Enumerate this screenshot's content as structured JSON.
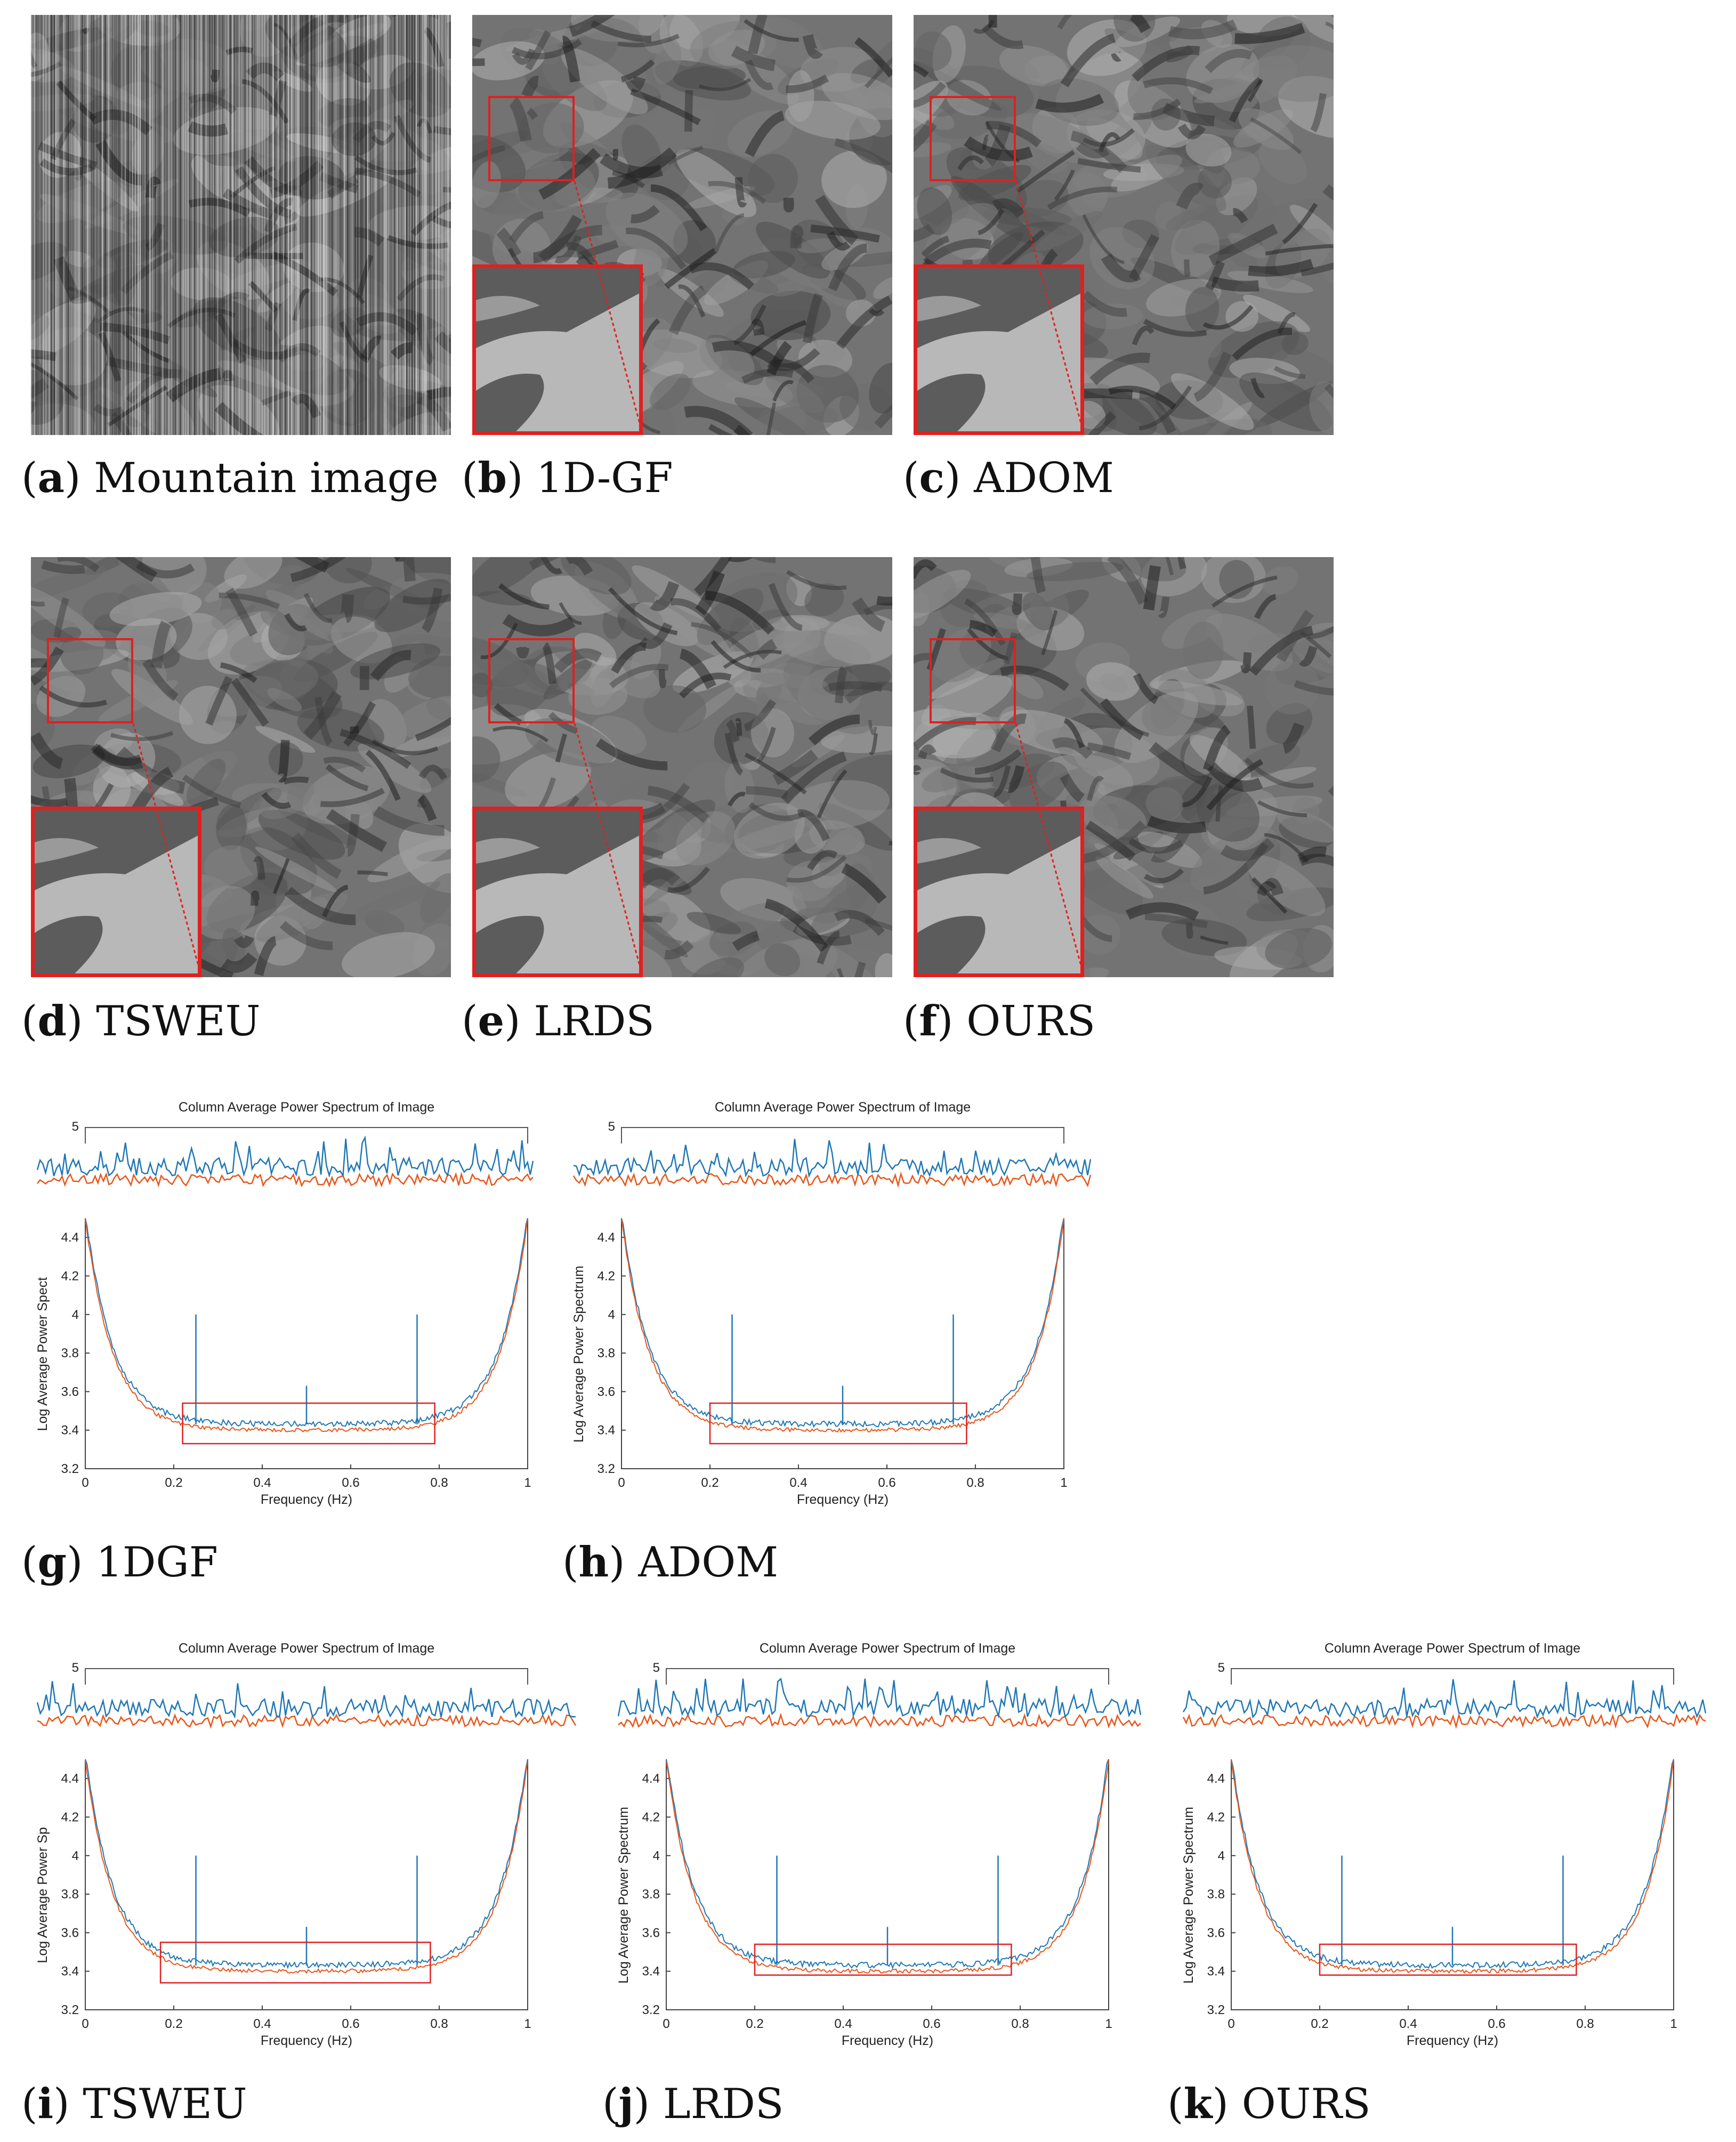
{
  "panels": [
    {
      "id": "a",
      "letter": "a",
      "label": "Mountain image",
      "striped": true,
      "zoom": false
    },
    {
      "id": "b",
      "letter": "b",
      "label": "1D-GF",
      "striped": false,
      "zoom": true
    },
    {
      "id": "c",
      "letter": "c",
      "label": "ADOM",
      "striped": false,
      "zoom": true
    },
    {
      "id": "d",
      "letter": "d",
      "label": "TSWEU",
      "striped": false,
      "zoom": true
    },
    {
      "id": "e",
      "letter": "e",
      "label": "LRDS",
      "striped": false,
      "zoom": true
    },
    {
      "id": "f",
      "letter": "f",
      "label": "OURS",
      "striped": false,
      "zoom": true
    }
  ],
  "chart_captions": [
    {
      "letter": "g",
      "label": "1DGF"
    },
    {
      "letter": "h",
      "label": "ADOM"
    },
    {
      "letter": "i",
      "label": "TSWEU"
    },
    {
      "letter": "j",
      "label": "LRDS"
    },
    {
      "letter": "k",
      "label": "OURS"
    }
  ],
  "chart_data": [
    {
      "id": "g",
      "type": "line",
      "title": "Column Average Power Spectrum of Image",
      "xlabel": "Frequency (Hz)",
      "ylabel": "Log Average Power Spect",
      "xlim": [
        0,
        1
      ],
      "ylim": [
        3.2,
        4.5
      ],
      "xticks": [
        "0",
        "0.2",
        "0.4",
        "0.6",
        "0.8",
        "1"
      ],
      "yticks": [
        "3.2",
        "3.4",
        "3.6",
        "3.8",
        "4",
        "4.2",
        "4.4"
      ],
      "inset_ytick": "5",
      "series": [
        {
          "color": "#1f77b4"
        },
        {
          "color": "#e8561a"
        }
      ],
      "spikes": [
        {
          "x": 0.25,
          "y": 4.0
        },
        {
          "x": 0.5,
          "y": 3.63
        },
        {
          "x": 0.75,
          "y": 4.0
        }
      ],
      "highlight_box": {
        "x0": 0.22,
        "x1": 0.79,
        "y0": 3.33,
        "y1": 3.54
      },
      "box_color": "#e02020"
    },
    {
      "id": "h",
      "type": "line",
      "title": "Column Average Power Spectrum of Image",
      "xlabel": "Frequency (Hz)",
      "ylabel": "Log Average Power Spectrum",
      "xlim": [
        0,
        1
      ],
      "ylim": [
        3.2,
        4.5
      ],
      "xticks": [
        "0",
        "0.2",
        "0.4",
        "0.6",
        "0.8",
        "1"
      ],
      "yticks": [
        "3.2",
        "3.4",
        "3.6",
        "3.8",
        "4",
        "4.2",
        "4.4"
      ],
      "inset_ytick": "5",
      "series": [
        {
          "color": "#1f77b4"
        },
        {
          "color": "#e8561a"
        }
      ],
      "spikes": [
        {
          "x": 0.25,
          "y": 4.0
        },
        {
          "x": 0.5,
          "y": 3.63
        },
        {
          "x": 0.75,
          "y": 4.0
        }
      ],
      "highlight_box": {
        "x0": 0.2,
        "x1": 0.78,
        "y0": 3.33,
        "y1": 3.54
      },
      "box_color": "#e02020"
    },
    {
      "id": "i",
      "type": "line",
      "title": "Column Average Power Spectrum of Image",
      "xlabel": "Frequency (Hz)",
      "ylabel": "Log Average Power Sp",
      "xlim": [
        0,
        1
      ],
      "ylim": [
        3.2,
        4.5
      ],
      "xticks": [
        "0",
        "0.2",
        "0.4",
        "0.6",
        "0.8",
        "1"
      ],
      "yticks": [
        "3.2",
        "3.4",
        "3.6",
        "3.8",
        "4",
        "4.2",
        "4.4"
      ],
      "inset_ytick": "5",
      "series": [
        {
          "color": "#1f77b4"
        },
        {
          "color": "#e8561a"
        }
      ],
      "spikes": [
        {
          "x": 0.25,
          "y": 4.0
        },
        {
          "x": 0.5,
          "y": 3.63
        },
        {
          "x": 0.75,
          "y": 4.0
        }
      ],
      "highlight_box": {
        "x0": 0.17,
        "x1": 0.78,
        "y0": 3.34,
        "y1": 3.55
      },
      "box_color": "#e02020"
    },
    {
      "id": "j",
      "type": "line",
      "title": "Column Average Power Spectrum of Image",
      "xlabel": "Frequency (Hz)",
      "ylabel": "Log Average Power Spectrum",
      "xlim": [
        0,
        1
      ],
      "ylim": [
        3.2,
        4.5
      ],
      "xticks": [
        "0",
        "0.2",
        "0.4",
        "0.6",
        "0.8",
        "1"
      ],
      "yticks": [
        "3.2",
        "3.4",
        "3.6",
        "3.8",
        "4",
        "4.2",
        "4.4"
      ],
      "inset_ytick": "5",
      "series": [
        {
          "color": "#1f77b4"
        },
        {
          "color": "#e8561a"
        }
      ],
      "spikes": [
        {
          "x": 0.25,
          "y": 4.0
        },
        {
          "x": 0.5,
          "y": 3.63
        },
        {
          "x": 0.75,
          "y": 4.0
        }
      ],
      "highlight_box": {
        "x0": 0.2,
        "x1": 0.78,
        "y0": 3.38,
        "y1": 3.54
      },
      "box_color": "#e02020"
    },
    {
      "id": "k",
      "type": "line",
      "title": "Column Average Power Spectrum of Image",
      "xlabel": "Frequency (Hz)",
      "ylabel": "Log Average Power Spectrum",
      "xlim": [
        0,
        1
      ],
      "ylim": [
        3.2,
        4.5
      ],
      "xticks": [
        "0",
        "0.2",
        "0.4",
        "0.6",
        "0.8",
        "1"
      ],
      "yticks": [
        "3.2",
        "3.4",
        "3.6",
        "3.8",
        "4",
        "4.2",
        "4.4"
      ],
      "inset_ytick": "5",
      "series": [
        {
          "color": "#1f77b4"
        },
        {
          "color": "#e8561a"
        }
      ],
      "spikes": [
        {
          "x": 0.25,
          "y": 4.0
        },
        {
          "x": 0.5,
          "y": 3.63
        },
        {
          "x": 0.75,
          "y": 4.0
        }
      ],
      "highlight_box": {
        "x0": 0.2,
        "x1": 0.78,
        "y0": 3.38,
        "y1": 3.54
      },
      "box_color": "#e02020"
    }
  ]
}
